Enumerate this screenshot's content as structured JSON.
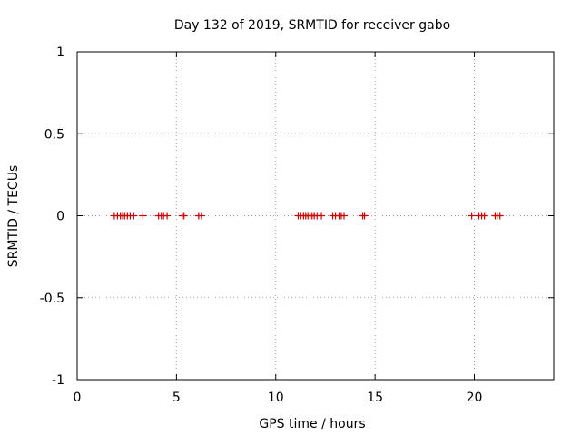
{
  "chart_data": {
    "type": "scatter",
    "title": "Day 132 of 2019, SRMTID for receiver gabo",
    "xlabel": "GPS time / hours",
    "ylabel": "SRMTID / TECUs",
    "xlim": [
      0,
      24
    ],
    "ylim": [
      -1,
      1
    ],
    "x_ticks": [
      0,
      5,
      10,
      15,
      20
    ],
    "x_tick_labels": [
      "0",
      "5",
      "10",
      "15",
      "20"
    ],
    "y_ticks": [
      -1,
      -0.5,
      0,
      0.5,
      1
    ],
    "y_tick_labels": [
      "-1",
      "-0.5",
      "0",
      "0.5",
      "1"
    ],
    "grid": true,
    "marker": "plus",
    "marker_color": "#cc0000",
    "points": [
      {
        "x": 1.87,
        "y": 0
      },
      {
        "x": 2.03,
        "y": 0
      },
      {
        "x": 2.18,
        "y": 0
      },
      {
        "x": 2.29,
        "y": 0
      },
      {
        "x": 2.39,
        "y": 0
      },
      {
        "x": 2.53,
        "y": 0
      },
      {
        "x": 2.67,
        "y": 0
      },
      {
        "x": 2.85,
        "y": 0
      },
      {
        "x": 3.31,
        "y": 0
      },
      {
        "x": 4.1,
        "y": 0
      },
      {
        "x": 4.24,
        "y": 0
      },
      {
        "x": 4.35,
        "y": 0
      },
      {
        "x": 4.53,
        "y": 0
      },
      {
        "x": 5.29,
        "y": 0
      },
      {
        "x": 5.38,
        "y": 0
      },
      {
        "x": 6.12,
        "y": 0
      },
      {
        "x": 6.26,
        "y": 0
      },
      {
        "x": 11.13,
        "y": 0
      },
      {
        "x": 11.26,
        "y": 0
      },
      {
        "x": 11.4,
        "y": 0
      },
      {
        "x": 11.51,
        "y": 0
      },
      {
        "x": 11.62,
        "y": 0
      },
      {
        "x": 11.73,
        "y": 0
      },
      {
        "x": 11.83,
        "y": 0
      },
      {
        "x": 11.94,
        "y": 0
      },
      {
        "x": 12.08,
        "y": 0
      },
      {
        "x": 12.3,
        "y": 0
      },
      {
        "x": 12.87,
        "y": 0
      },
      {
        "x": 13.01,
        "y": 0
      },
      {
        "x": 13.19,
        "y": 0
      },
      {
        "x": 13.3,
        "y": 0
      },
      {
        "x": 13.44,
        "y": 0
      },
      {
        "x": 14.38,
        "y": 0
      },
      {
        "x": 14.47,
        "y": 0
      },
      {
        "x": 19.87,
        "y": 0
      },
      {
        "x": 20.23,
        "y": 0
      },
      {
        "x": 20.37,
        "y": 0
      },
      {
        "x": 20.51,
        "y": 0
      },
      {
        "x": 21.05,
        "y": 0
      },
      {
        "x": 21.15,
        "y": 0
      },
      {
        "x": 21.29,
        "y": 0
      }
    ]
  }
}
